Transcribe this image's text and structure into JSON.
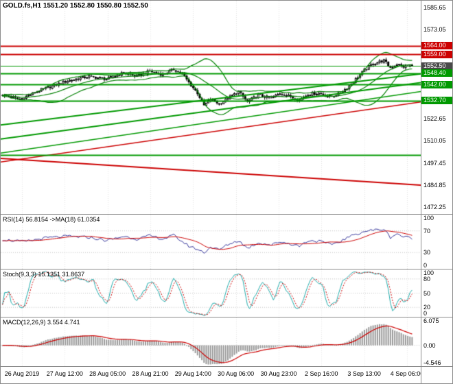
{
  "header": {
    "symbol_info": "GOLD.fs,H1 1551.20 1552.80 1550.80 1552.50"
  },
  "colors": {
    "grid": "#e3e3e3",
    "border": "#8a8a8a",
    "background": "#ffffff",
    "bull": "#ffffff",
    "bear": "#000000",
    "resistance": "#cc0000",
    "support": "#009900",
    "current_price_bg": "#4a4a4a"
  },
  "time_axis": [
    "26 Aug 2019",
    "27 Aug 12:00",
    "28 Aug 05:00",
    "28 Aug 21:00",
    "29 Aug 14:00",
    "30 Aug 06:00",
    "30 Aug 23:00",
    "2 Sep 16:00",
    "3 Sep 13:00",
    "4 Sep 06:00"
  ],
  "chart_data": [
    {
      "type": "candlestick",
      "name": "GOLD.fs hourly price",
      "symbol": "GOLD.fs",
      "timeframe": "H1",
      "open": "1551.20",
      "high": "1552.80",
      "low": "1550.80",
      "close": "1552.50",
      "bars": 190,
      "body_noise": 1.6,
      "wick_amplitude": 1.2,
      "y_range": [
        1468.5,
        1589.5
      ],
      "close_anchors": [
        [
          0,
          1536
        ],
        [
          8,
          1533.5
        ],
        [
          18,
          1539
        ],
        [
          30,
          1544
        ],
        [
          40,
          1546.5
        ],
        [
          48,
          1545
        ],
        [
          56,
          1548.5
        ],
        [
          62,
          1546.5
        ],
        [
          68,
          1549.5
        ],
        [
          74,
          1547.5
        ],
        [
          79,
          1550.5
        ],
        [
          83,
          1548
        ],
        [
          86,
          1543
        ],
        [
          90,
          1537
        ],
        [
          93,
          1530
        ],
        [
          96,
          1533.5
        ],
        [
          100,
          1531
        ],
        [
          104,
          1534
        ],
        [
          109,
          1538
        ],
        [
          113,
          1532
        ],
        [
          118,
          1536
        ],
        [
          124,
          1534
        ],
        [
          128,
          1537
        ],
        [
          133,
          1535
        ],
        [
          137,
          1533
        ],
        [
          141,
          1536.5
        ],
        [
          146,
          1537
        ],
        [
          151,
          1535
        ],
        [
          155,
          1536.5
        ],
        [
          159,
          1540
        ],
        [
          163,
          1545
        ],
        [
          167,
          1550
        ],
        [
          170,
          1553
        ],
        [
          173,
          1554.5
        ],
        [
          176,
          1555.5
        ],
        [
          179,
          1551.5
        ],
        [
          182,
          1553.5
        ],
        [
          185,
          1552
        ],
        [
          189,
          1552.5
        ]
      ],
      "y_ticks": [
        1585.65,
        1573.05,
        1522.65,
        1510.05,
        1497.45,
        1484.85,
        1472.25
      ],
      "price_labels": [
        {
          "value": "1564.00",
          "price": 1564.0,
          "bg": "#cc0000"
        },
        {
          "value": "1559.00",
          "price": 1559.0,
          "bg": "#cc0000"
        },
        {
          "value": "1552.50",
          "price": 1552.5,
          "bg": "#4a4a4a"
        },
        {
          "value": "1548.40",
          "price": 1548.4,
          "bg": "#009900"
        },
        {
          "value": "1542.00",
          "price": 1542.0,
          "bg": "#009900"
        },
        {
          "value": "1532.70",
          "price": 1532.7,
          "bg": "#009900"
        }
      ],
      "h_lines": [
        {
          "price": 1564.0,
          "color": "#cc0000",
          "w": 2
        },
        {
          "price": 1559.0,
          "color": "#cc0000",
          "w": 2
        },
        {
          "price": 1552.5,
          "color": "#009900",
          "w": 1
        },
        {
          "price": 1548.4,
          "color": "#009900",
          "w": 2
        },
        {
          "price": 1542.0,
          "color": "#009900",
          "w": 2
        },
        {
          "price": 1532.7,
          "color": "#009900",
          "w": 2
        },
        {
          "price": 1502.0,
          "color": "#009900",
          "w": 2
        }
      ],
      "trend_lines": [
        {
          "x1": 0,
          "p1": 1519,
          "x2": 1,
          "p2": 1548,
          "color": "#009900",
          "w": 2
        },
        {
          "x1": 0,
          "p1": 1511,
          "x2": 1,
          "p2": 1543,
          "color": "#009900",
          "w": 2
        },
        {
          "x1": 0,
          "p1": 1503,
          "x2": 1,
          "p2": 1538,
          "color": "#009900",
          "w": 1.5
        },
        {
          "x1": 0,
          "p1": 1498,
          "x2": 1,
          "p2": 1532,
          "color": "#cc0000",
          "w": 1.5
        },
        {
          "x1": 0,
          "p1": 1500,
          "x2": 1,
          "p2": 1484.8,
          "color": "#cc0000",
          "w": 2
        }
      ],
      "bollinger": {
        "period": 20,
        "deviation": 2,
        "color": "#008000"
      }
    },
    {
      "type": "line",
      "name": "RSI",
      "title": "RSI(14) 56.8154 ->MA(18) 61.0354",
      "range": [
        0,
        100
      ],
      "ticks": [
        "100",
        "70",
        "30",
        "0"
      ],
      "tick_values": [
        100,
        70,
        30,
        0
      ],
      "levels": [
        70,
        30
      ],
      "ma_period": 18,
      "anchors": [
        [
          0,
          54
        ],
        [
          10,
          50
        ],
        [
          20,
          57
        ],
        [
          30,
          60
        ],
        [
          40,
          58
        ],
        [
          48,
          52
        ],
        [
          56,
          60
        ],
        [
          62,
          55
        ],
        [
          68,
          61
        ],
        [
          74,
          55
        ],
        [
          79,
          62
        ],
        [
          83,
          50
        ],
        [
          86,
          42
        ],
        [
          90,
          36
        ],
        [
          93,
          30
        ],
        [
          96,
          40
        ],
        [
          100,
          35
        ],
        [
          104,
          45
        ],
        [
          109,
          52
        ],
        [
          113,
          38
        ],
        [
          118,
          48
        ],
        [
          124,
          44
        ],
        [
          128,
          50
        ],
        [
          133,
          46
        ],
        [
          137,
          42
        ],
        [
          141,
          52
        ],
        [
          146,
          51
        ],
        [
          151,
          45
        ],
        [
          155,
          49
        ],
        [
          159,
          57
        ],
        [
          163,
          64
        ],
        [
          167,
          69
        ],
        [
          170,
          71
        ],
        [
          173,
          72
        ],
        [
          176,
          73
        ],
        [
          179,
          58
        ],
        [
          182,
          65
        ],
        [
          185,
          59
        ],
        [
          189,
          57
        ]
      ],
      "colors": {
        "main": "#333399",
        "ma": "#cc0000"
      }
    },
    {
      "type": "line",
      "name": "Stochastic",
      "title": "Stoch(9,3,3) 15.1351 31.8637",
      "range": [
        0,
        100
      ],
      "ticks": [
        "100",
        "80",
        "50",
        "20",
        "0"
      ],
      "tick_values": [
        100,
        80,
        50,
        20,
        0
      ],
      "levels": [
        80,
        50,
        20
      ],
      "k_period": 9,
      "slowing": 3,
      "d_period": 3,
      "colors": {
        "main": "#1faaaa",
        "signal": "#cc0000"
      }
    },
    {
      "type": "macd",
      "name": "MACD",
      "title": "MACD(12,26,9) 3.554 4.741",
      "fast": 12,
      "slow": 26,
      "signal": 9,
      "range": [
        -4.546,
        6.075
      ],
      "ticks": [
        "6.075",
        "0.00",
        "-4.546"
      ],
      "tick_values": [
        6.075,
        0,
        -4.546
      ],
      "colors": {
        "hist": "#9a9a9a",
        "signal": "#cc0000"
      }
    }
  ]
}
